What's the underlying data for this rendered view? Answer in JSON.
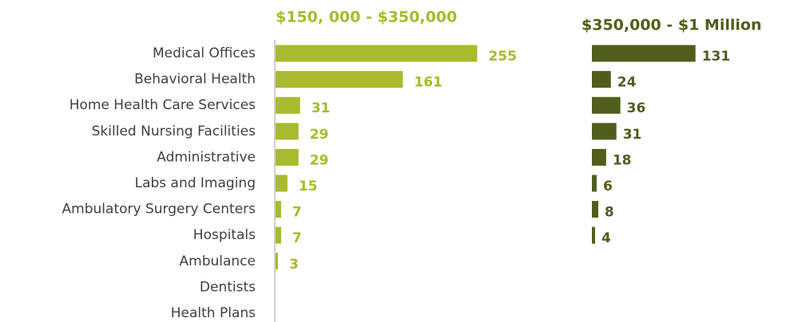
{
  "chart_data": {
    "type": "bar",
    "categories": [
      "Medical Offices",
      "Behavioral Health",
      "Home Health Care Services",
      "Skilled Nursing Facilities",
      "Administrative",
      "Labs and Imaging",
      "Ambulatory Surgery Centers",
      "Hospitals",
      "Ambulance",
      "Dentists",
      "Health Plans"
    ],
    "series": [
      {
        "name": "$150, 000 - $350,000",
        "color": "#a9ba2c",
        "values": [
          255,
          161,
          31,
          29,
          29,
          15,
          7,
          7,
          3,
          null,
          null
        ]
      },
      {
        "name": "$350,000  - $1 Million",
        "color": "#4f5e1c",
        "values": [
          131,
          24,
          36,
          31,
          18,
          6,
          8,
          4,
          null,
          null,
          null
        ]
      }
    ],
    "xlim": [
      0,
      300
    ]
  }
}
